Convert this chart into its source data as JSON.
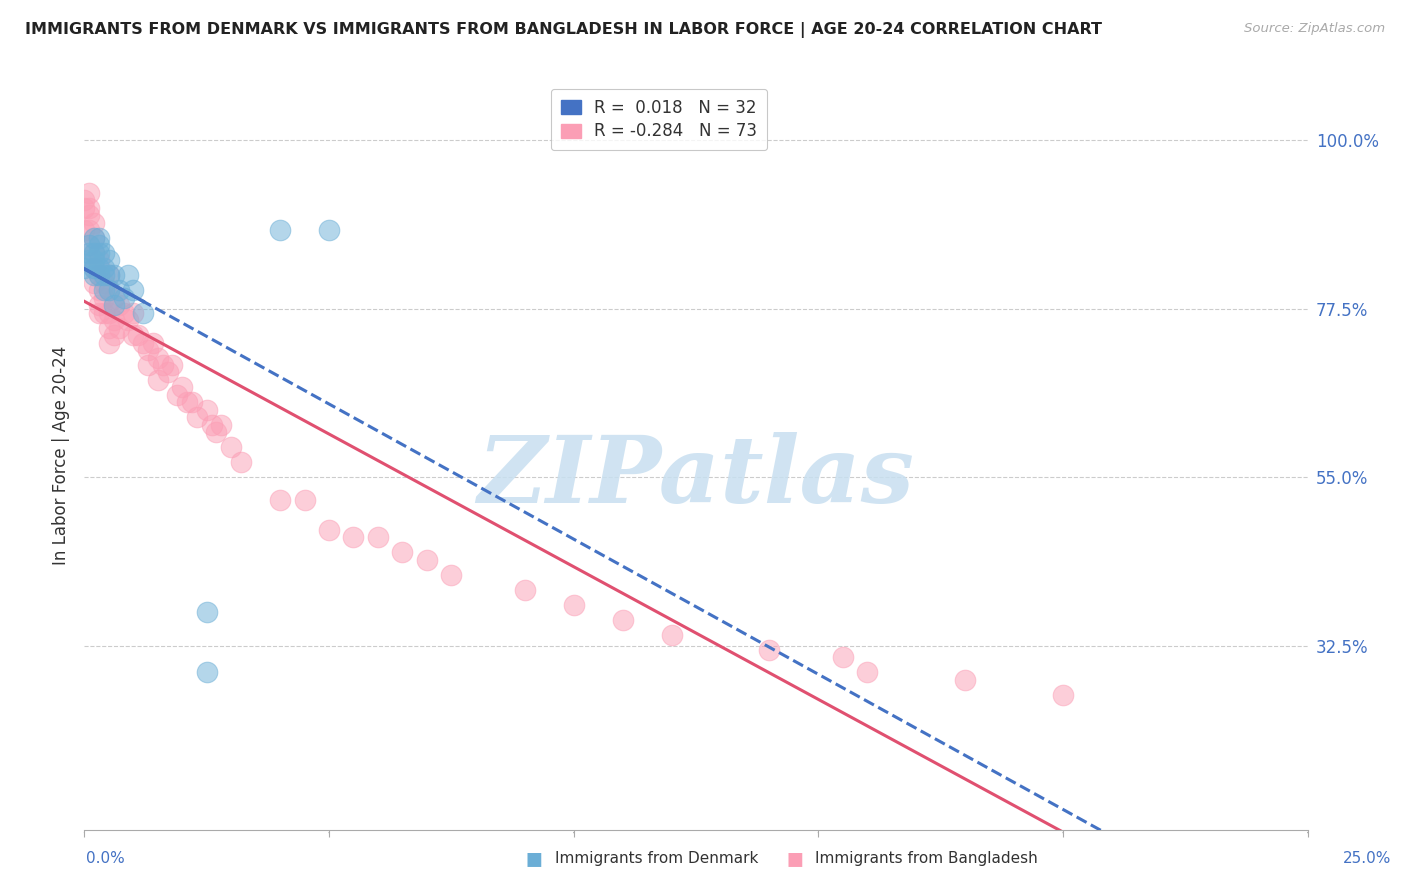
{
  "title": "IMMIGRANTS FROM DENMARK VS IMMIGRANTS FROM BANGLADESH IN LABOR FORCE | AGE 20-24 CORRELATION CHART",
  "source": "Source: ZipAtlas.com",
  "ylabel": "In Labor Force | Age 20-24",
  "right_yticks": [
    0.325,
    0.55,
    0.775,
    1.0
  ],
  "right_yticklabels": [
    "32.5%",
    "55.0%",
    "77.5%",
    "100.0%"
  ],
  "xlim": [
    0.0,
    0.25
  ],
  "ylim": [
    0.08,
    1.08
  ],
  "legend_denmark": "Immigrants from Denmark",
  "legend_bangladesh": "Immigrants from Bangladesh",
  "R_denmark": 0.018,
  "N_denmark": 32,
  "R_bangladesh": -0.284,
  "N_bangladesh": 73,
  "color_denmark": "#6baed6",
  "color_bangladesh": "#fb9eb5",
  "dk_line_color": "#4472c4",
  "bd_line_color": "#e05070",
  "watermark_text": "ZIPatlas",
  "watermark_color": "#c8dff0",
  "background_color": "#ffffff",
  "grid_color": "#cccccc",
  "denmark_scatter_x": [
    0.0,
    0.001,
    0.001,
    0.001,
    0.002,
    0.002,
    0.002,
    0.002,
    0.002,
    0.003,
    0.003,
    0.003,
    0.003,
    0.003,
    0.004,
    0.004,
    0.004,
    0.004,
    0.005,
    0.005,
    0.005,
    0.006,
    0.006,
    0.007,
    0.008,
    0.009,
    0.01,
    0.012,
    0.025,
    0.025,
    0.04,
    0.05
  ],
  "denmark_scatter_y": [
    0.83,
    0.84,
    0.85,
    0.86,
    0.82,
    0.83,
    0.84,
    0.85,
    0.87,
    0.82,
    0.83,
    0.85,
    0.86,
    0.87,
    0.8,
    0.82,
    0.83,
    0.85,
    0.8,
    0.82,
    0.84,
    0.78,
    0.82,
    0.8,
    0.79,
    0.82,
    0.8,
    0.77,
    0.37,
    0.29,
    0.88,
    0.88
  ],
  "bangladesh_scatter_x": [
    0.0,
    0.0,
    0.0,
    0.001,
    0.001,
    0.001,
    0.001,
    0.001,
    0.002,
    0.002,
    0.002,
    0.002,
    0.002,
    0.003,
    0.003,
    0.003,
    0.003,
    0.003,
    0.004,
    0.004,
    0.004,
    0.005,
    0.005,
    0.005,
    0.005,
    0.005,
    0.006,
    0.006,
    0.006,
    0.007,
    0.007,
    0.008,
    0.009,
    0.01,
    0.01,
    0.011,
    0.012,
    0.013,
    0.013,
    0.014,
    0.015,
    0.015,
    0.016,
    0.017,
    0.018,
    0.019,
    0.02,
    0.021,
    0.022,
    0.023,
    0.025,
    0.026,
    0.027,
    0.028,
    0.03,
    0.032,
    0.04,
    0.045,
    0.05,
    0.055,
    0.06,
    0.065,
    0.07,
    0.075,
    0.09,
    0.1,
    0.11,
    0.12,
    0.14,
    0.155,
    0.16,
    0.18,
    0.2
  ],
  "bangladesh_scatter_y": [
    0.92,
    0.91,
    0.88,
    0.93,
    0.91,
    0.9,
    0.88,
    0.86,
    0.89,
    0.87,
    0.85,
    0.83,
    0.81,
    0.84,
    0.82,
    0.8,
    0.78,
    0.77,
    0.81,
    0.79,
    0.77,
    0.82,
    0.8,
    0.77,
    0.75,
    0.73,
    0.79,
    0.76,
    0.74,
    0.78,
    0.75,
    0.77,
    0.76,
    0.77,
    0.74,
    0.74,
    0.73,
    0.72,
    0.7,
    0.73,
    0.71,
    0.68,
    0.7,
    0.69,
    0.7,
    0.66,
    0.67,
    0.65,
    0.65,
    0.63,
    0.64,
    0.62,
    0.61,
    0.62,
    0.59,
    0.57,
    0.52,
    0.52,
    0.48,
    0.47,
    0.47,
    0.45,
    0.44,
    0.42,
    0.4,
    0.38,
    0.36,
    0.34,
    0.32,
    0.31,
    0.29,
    0.28,
    0.26
  ]
}
